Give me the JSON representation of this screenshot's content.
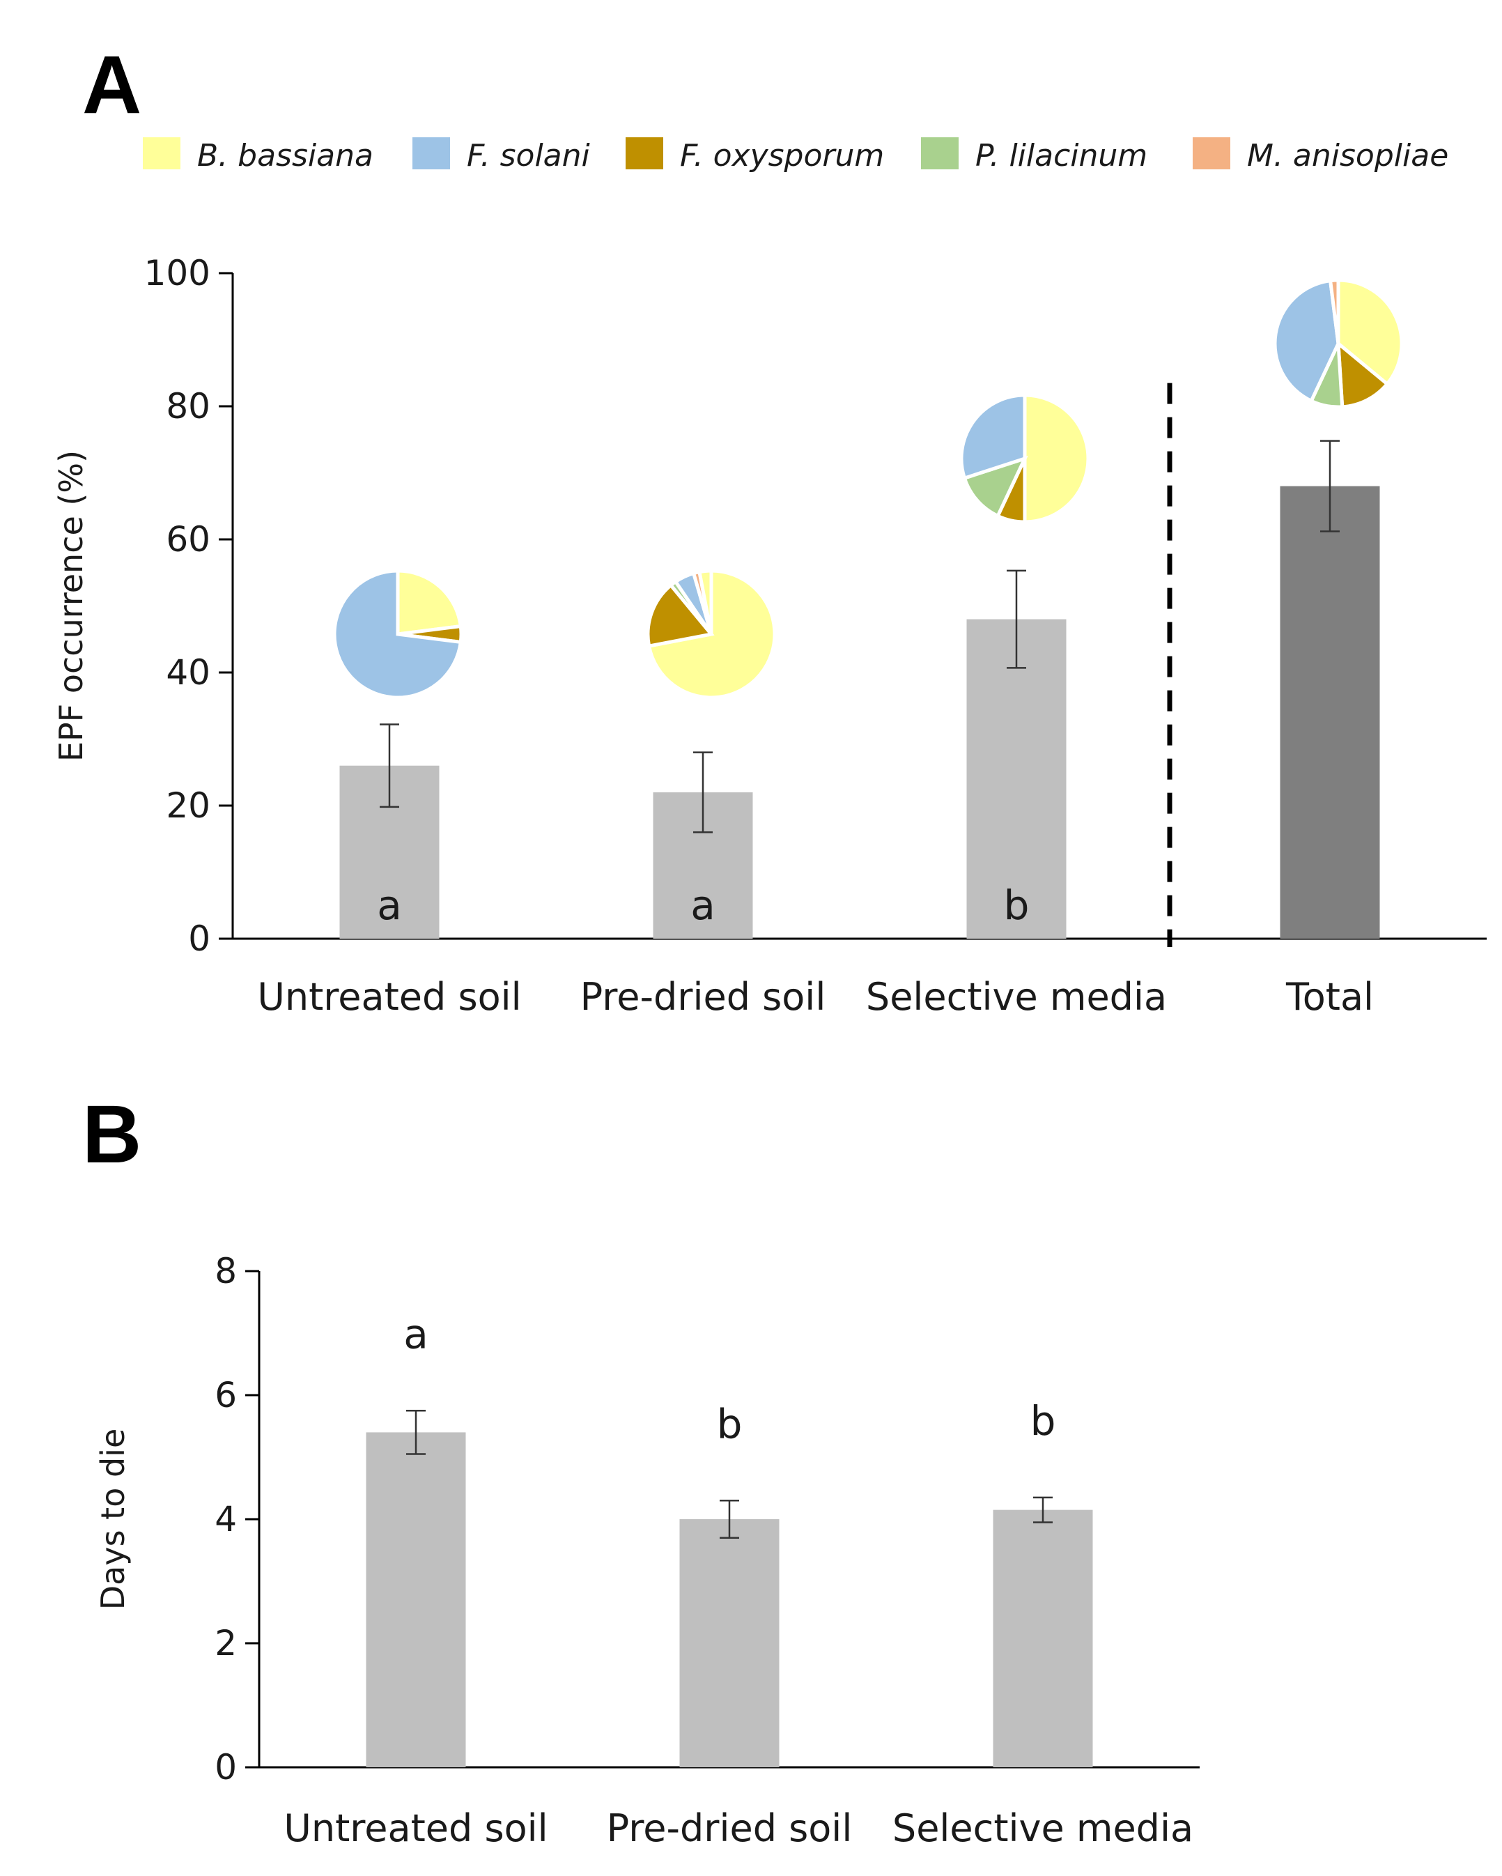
{
  "chart_data": [
    {
      "panel": "A",
      "type": "bar",
      "ylabel": "EPF occurrence (%)",
      "xlabel": "",
      "ylim": [
        0,
        100
      ],
      "yticks": [
        0,
        20,
        40,
        60,
        80,
        100
      ],
      "categories": [
        "Untreated soil",
        "Pre-dried soil",
        "Selective media",
        "Total"
      ],
      "values": [
        26,
        22,
        48,
        68
      ],
      "errors": [
        6.2,
        6.0,
        7.3,
        6.8
      ],
      "significance": [
        "a",
        "a",
        "b",
        ""
      ],
      "bar_colors": [
        "#bfbfbf",
        "#bfbfbf",
        "#bfbfbf",
        "#7f7f7f"
      ],
      "separator_after": "Selective media",
      "legend": [
        {
          "name": "B. bassiana",
          "color": "#ffff99"
        },
        {
          "name": "F. solani",
          "color": "#9dc3e6"
        },
        {
          "name": "F. oxysporum",
          "color": "#bf9000"
        },
        {
          "name": "P. lilacinum",
          "color": "#a9d18e"
        },
        {
          "name": "M. anisopliae",
          "color": "#f4b183"
        }
      ],
      "pies": [
        {
          "category": "Untreated soil",
          "slices": [
            {
              "name": "B. bassiana",
              "value": 23
            },
            {
              "name": "F. oxysporum",
              "value": 4
            },
            {
              "name": "F. solani",
              "value": 73
            }
          ]
        },
        {
          "category": "Pre-dried soil",
          "slices": [
            {
              "name": "B. bassiana",
              "value": 72
            },
            {
              "name": "F. oxysporum",
              "value": 17
            },
            {
              "name": "P. lilacinum",
              "value": 1.5
            },
            {
              "name": "F. solani",
              "value": 5
            },
            {
              "name": "M. anisopliae",
              "value": 1.5
            },
            {
              "name": "B. bassiana",
              "value": 3
            }
          ]
        },
        {
          "category": "Selective media",
          "slices": [
            {
              "name": "B. bassiana",
              "value": 50
            },
            {
              "name": "F. oxysporum",
              "value": 7
            },
            {
              "name": "P. lilacinum",
              "value": 13
            },
            {
              "name": "F. solani",
              "value": 30
            }
          ]
        },
        {
          "category": "Total",
          "slices": [
            {
              "name": "B. bassiana",
              "value": 36
            },
            {
              "name": "F. oxysporum",
              "value": 13
            },
            {
              "name": "P. lilacinum",
              "value": 8
            },
            {
              "name": "F. solani",
              "value": 41
            },
            {
              "name": "M. anisopliae",
              "value": 2
            }
          ]
        }
      ]
    },
    {
      "panel": "B",
      "type": "bar",
      "ylabel": "Days to die",
      "xlabel": "",
      "ylim": [
        0,
        8
      ],
      "yticks": [
        0,
        2,
        4,
        6,
        8
      ],
      "categories": [
        "Untreated soil",
        "Pre-dried soil",
        "Selective media"
      ],
      "values": [
        5.4,
        4.0,
        4.15
      ],
      "errors": [
        0.35,
        0.3,
        0.2
      ],
      "significance": [
        "a",
        "b",
        "b"
      ],
      "bar_colors": [
        "#bfbfbf",
        "#bfbfbf",
        "#bfbfbf"
      ]
    }
  ]
}
